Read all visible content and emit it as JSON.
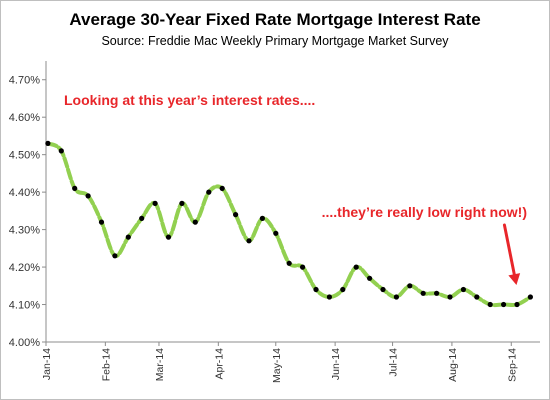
{
  "chart_data": {
    "type": "line",
    "title": "Average 30-Year Fixed Rate Mortgage Interest Rate",
    "subtitle": "Source: Freddie Mac Weekly Primary Mortgage Market Survey",
    "xlabel": "",
    "ylabel": "",
    "ylim": [
      4.0,
      4.75
    ],
    "y_ticks": [
      "4.00%",
      "4.10%",
      "4.20%",
      "4.30%",
      "4.40%",
      "4.50%",
      "4.60%",
      "4.70%"
    ],
    "x_ticks": [
      "Jan-14",
      "Feb-14",
      "Mar-14",
      "Apr-14",
      "May-14",
      "Jun-14",
      "Jul-14",
      "Aug-14",
      "Sep-14"
    ],
    "x": [
      "2014-01-02",
      "2014-01-09",
      "2014-01-16",
      "2014-01-23",
      "2014-01-30",
      "2014-02-06",
      "2014-02-13",
      "2014-02-20",
      "2014-02-27",
      "2014-03-06",
      "2014-03-13",
      "2014-03-20",
      "2014-03-27",
      "2014-04-03",
      "2014-04-10",
      "2014-04-17",
      "2014-04-24",
      "2014-05-01",
      "2014-05-08",
      "2014-05-15",
      "2014-05-22",
      "2014-05-29",
      "2014-06-05",
      "2014-06-12",
      "2014-06-19",
      "2014-06-26",
      "2014-07-03",
      "2014-07-10",
      "2014-07-17",
      "2014-07-24",
      "2014-07-31",
      "2014-08-07",
      "2014-08-14",
      "2014-08-21",
      "2014-08-28",
      "2014-09-04",
      "2014-09-11"
    ],
    "series": [
      {
        "values": [
          4.53,
          4.51,
          4.41,
          4.39,
          4.32,
          4.23,
          4.28,
          4.33,
          4.37,
          4.28,
          4.37,
          4.32,
          4.4,
          4.41,
          4.34,
          4.27,
          4.33,
          4.29,
          4.21,
          4.2,
          4.14,
          4.12,
          4.14,
          4.2,
          4.17,
          4.14,
          4.12,
          4.15,
          4.13,
          4.13,
          4.12,
          4.14,
          4.12,
          4.1,
          4.1,
          4.1,
          4.12
        ]
      }
    ],
    "annotations": [
      {
        "text": "Looking at this year’s interest rates...."
      },
      {
        "text": "....they’re really low right now!)"
      }
    ],
    "line_color": "#92d050",
    "marker_color": "#000000",
    "annotation_color": "#e8262a",
    "grid": false,
    "legend": "none"
  }
}
